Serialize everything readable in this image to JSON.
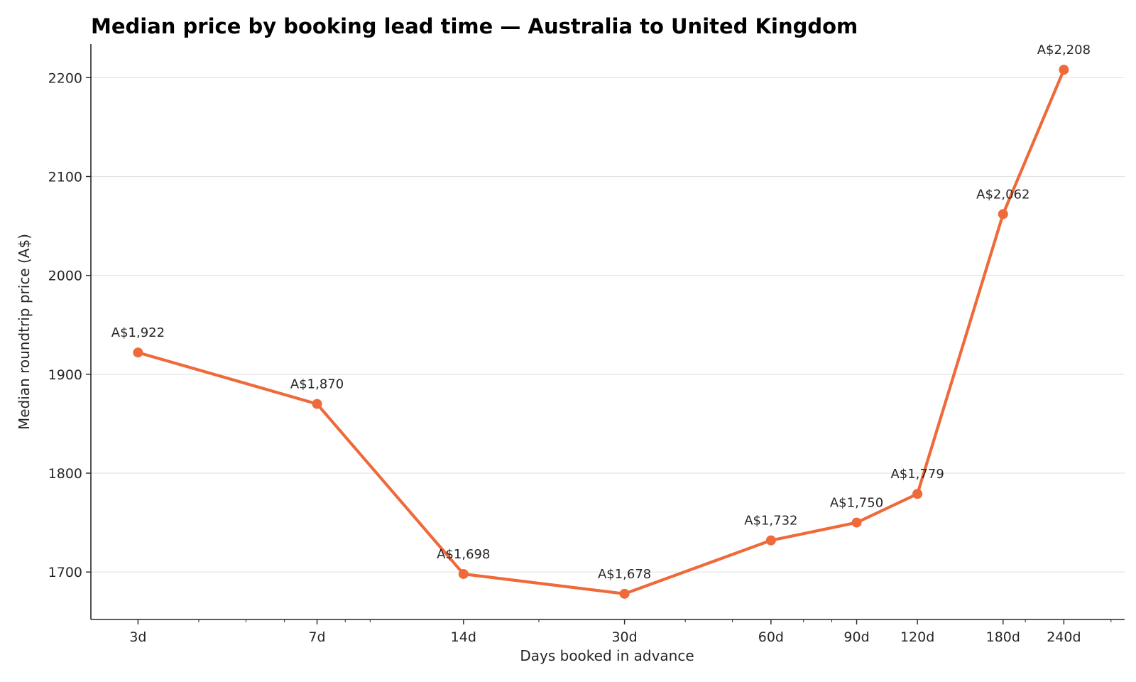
{
  "chart_data": {
    "type": "line",
    "title": "Median price by booking lead time — Australia to United Kingdom",
    "xlabel": "Days booked in advance",
    "ylabel": "Median roundtrip price (A$)",
    "x_scale": "log",
    "x": [
      3,
      7,
      14,
      30,
      60,
      90,
      120,
      180,
      240
    ],
    "x_tick_labels": [
      "3d",
      "7d",
      "14d",
      "30d",
      "60d",
      "90d",
      "120d",
      "180d",
      "240d"
    ],
    "y_ticks": [
      1700,
      1800,
      1900,
      2000,
      2100,
      2200
    ],
    "ylim": [
      1652,
      2234
    ],
    "grid": "horizontal",
    "series": [
      {
        "values": [
          1922,
          1870,
          1698,
          1678,
          1732,
          1750,
          1779,
          2062,
          2208
        ],
        "data_labels": [
          "A$1,922",
          "A$1,870",
          "A$1,698",
          "A$1,678",
          "A$1,732",
          "A$1,750",
          "A$1,779",
          "A$2,062",
          "A$2,208"
        ],
        "color": "#ee6a3a"
      }
    ]
  }
}
